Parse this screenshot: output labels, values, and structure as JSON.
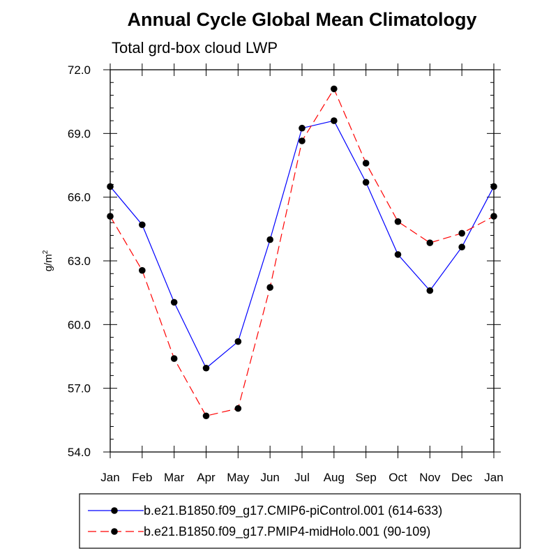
{
  "chart_data": {
    "type": "line",
    "title": "Annual Cycle Global Mean Climatology",
    "subtitle": "Total grd-box cloud LWP",
    "xlabel": "",
    "ylabel_base": "g/m",
    "ylabel_sup": "2",
    "categories": [
      "Jan",
      "Feb",
      "Mar",
      "Apr",
      "May",
      "Jun",
      "Jul",
      "Aug",
      "Sep",
      "Oct",
      "Nov",
      "Dec",
      "Jan"
    ],
    "ylim": [
      54.0,
      72.0
    ],
    "yticks": [
      54.0,
      57.0,
      60.0,
      63.0,
      66.0,
      69.0,
      72.0
    ],
    "ytick_labels": [
      "54.0",
      "57.0",
      "60.0",
      "63.0",
      "66.0",
      "69.0",
      "72.0"
    ],
    "series": [
      {
        "name": "b.e21.B1850.f09_g17.CMIP6-piControl.001 (614-633)",
        "color": "#0000ff",
        "dash": "solid",
        "values": [
          66.5,
          64.7,
          61.05,
          57.95,
          59.2,
          64.0,
          69.25,
          69.6,
          66.7,
          63.3,
          61.6,
          63.65,
          66.5
        ]
      },
      {
        "name": "b.e21.B1850.f09_g17.PMIP4-midHolo.001 (90-109)",
        "color": "#ff0000",
        "dash": "dashed",
        "values": [
          65.1,
          62.55,
          58.4,
          55.7,
          56.05,
          61.75,
          68.65,
          71.1,
          67.6,
          64.85,
          63.85,
          64.3,
          65.1
        ]
      }
    ],
    "legend_position": "bottom-center"
  }
}
